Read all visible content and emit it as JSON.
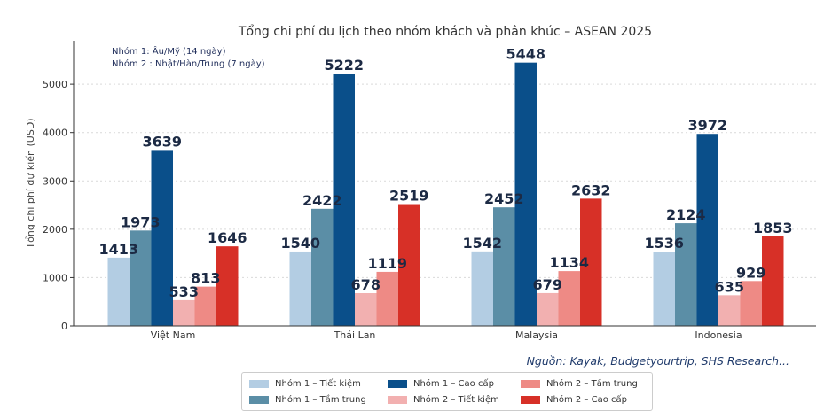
{
  "chart_data": {
    "type": "bar",
    "title": "Tổng chi phí du lịch theo nhóm khách và phân khúc – ASEAN 2025",
    "xlabel": "",
    "ylabel": "Tổng chi phí dự kiến (USD)",
    "ylim": [
      0,
      5900
    ],
    "yticks": [
      0,
      1000,
      2000,
      3000,
      4000,
      5000
    ],
    "grid": true,
    "categories": [
      "Việt Nam",
      "Thái Lan",
      "Malaysia",
      "Indonesia"
    ],
    "series": [
      {
        "name": "Nhóm 1 – Tiết kiệm",
        "color": "#b3cde3",
        "values": [
          1413,
          1540,
          1542,
          1536
        ]
      },
      {
        "name": "Nhóm 1 – Tầm trung",
        "color": "#5b8ea6",
        "values": [
          1973,
          2422,
          2452,
          2124
        ]
      },
      {
        "name": "Nhóm 1 – Cao cấp",
        "color": "#0a4f8a",
        "values": [
          3639,
          5222,
          5448,
          3972
        ]
      },
      {
        "name": "Nhóm 2 – Tiết kiệm",
        "color": "#f2b0b0",
        "values": [
          533,
          678,
          679,
          635
        ]
      },
      {
        "name": "Nhóm 2 – Tầm trung",
        "color": "#ee8a85",
        "values": [
          813,
          1119,
          1134,
          929
        ]
      },
      {
        "name": "Nhóm 2 – Cao cấp",
        "color": "#d73027",
        "values": [
          1646,
          2519,
          2632,
          1853
        ]
      }
    ],
    "annotations": [
      "Nhóm 1: Âu/Mỹ (14 ngày)",
      "Nhóm 2 : Nhật/Hàn/Trung (7 ngày)"
    ],
    "source": "Nguồn: Kayak, Budgetyourtrip, SHS Research...",
    "legend_position": "bottom"
  }
}
